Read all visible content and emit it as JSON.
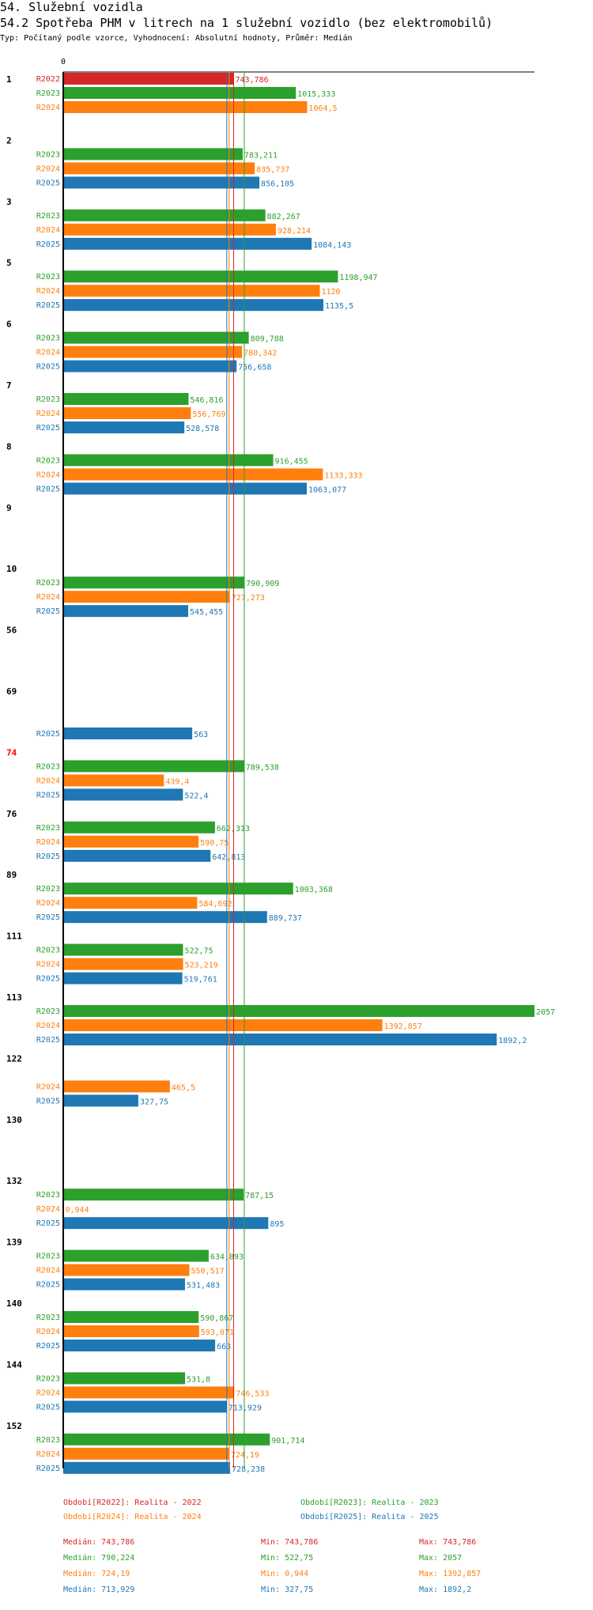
{
  "header": {
    "title": "54. Služební vozidla",
    "subtitle": "54.2 Spotřeba PHM v litrech na 1 služební vozidlo (bez elektromobilů)",
    "note": "Typ: Počítaný podle vzorce, Vyhodnocení: Absolutní hodnoty, Průměr: Medián"
  },
  "colors": {
    "R2022": "#d62728",
    "R2023": "#2ca02c",
    "R2024": "#ff7f0e",
    "R2025": "#1f77b4",
    "highlight_group": "#ff0000"
  },
  "chart_data": {
    "type": "bar",
    "orientation": "horizontal",
    "title": "54.2 Spotřeba PHM v litrech na 1 služební vozidlo (bez elektromobilů)",
    "x_axis_zero_label": "0",
    "xlim": [
      0,
      2057
    ],
    "highlight_group": "74",
    "groups": [
      {
        "id": "1",
        "bars": [
          {
            "series": "R2022",
            "label": "743,786",
            "value": 743.786
          },
          {
            "series": "R2023",
            "label": "1015,333",
            "value": 1015.333
          },
          {
            "series": "R2024",
            "label": "1064,5",
            "value": 1064.5
          }
        ]
      },
      {
        "id": "2",
        "bars": [
          {
            "series": "R2023",
            "label": "783,211",
            "value": 783.211
          },
          {
            "series": "R2024",
            "label": "835,737",
            "value": 835.737
          },
          {
            "series": "R2025",
            "label": "856,105",
            "value": 856.105
          }
        ]
      },
      {
        "id": "3",
        "bars": [
          {
            "series": "R2023",
            "label": "882,267",
            "value": 882.267
          },
          {
            "series": "R2024",
            "label": "928,214",
            "value": 928.214
          },
          {
            "series": "R2025",
            "label": "1084,143",
            "value": 1084.143
          }
        ]
      },
      {
        "id": "5",
        "bars": [
          {
            "series": "R2023",
            "label": "1198,947",
            "value": 1198.947
          },
          {
            "series": "R2024",
            "label": "1120",
            "value": 1120
          },
          {
            "series": "R2025",
            "label": "1135,5",
            "value": 1135.5
          }
        ]
      },
      {
        "id": "6",
        "bars": [
          {
            "series": "R2023",
            "label": "809,788",
            "value": 809.788
          },
          {
            "series": "R2024",
            "label": "780,342",
            "value": 780.342
          },
          {
            "series": "R2025",
            "label": "756,658",
            "value": 756.658
          }
        ]
      },
      {
        "id": "7",
        "bars": [
          {
            "series": "R2023",
            "label": "546,816",
            "value": 546.816
          },
          {
            "series": "R2024",
            "label": "556,769",
            "value": 556.769
          },
          {
            "series": "R2025",
            "label": "528,578",
            "value": 528.578
          }
        ]
      },
      {
        "id": "8",
        "bars": [
          {
            "series": "R2023",
            "label": "916,455",
            "value": 916.455
          },
          {
            "series": "R2024",
            "label": "1133,333",
            "value": 1133.333
          },
          {
            "series": "R2025",
            "label": "1063,077",
            "value": 1063.077
          }
        ]
      },
      {
        "id": "9",
        "bars": []
      },
      {
        "id": "10",
        "bars": [
          {
            "series": "R2023",
            "label": "790,909",
            "value": 790.909
          },
          {
            "series": "R2024",
            "label": "727,273",
            "value": 727.273
          },
          {
            "series": "R2025",
            "label": "545,455",
            "value": 545.455
          }
        ]
      },
      {
        "id": "56",
        "bars": []
      },
      {
        "id": "69",
        "bars": [
          {
            "series": "R2025",
            "label": "563",
            "value": 563
          }
        ]
      },
      {
        "id": "74",
        "bars": [
          {
            "series": "R2023",
            "label": "789,538",
            "value": 789.538
          },
          {
            "series": "R2024",
            "label": "439,4",
            "value": 439.4
          },
          {
            "series": "R2025",
            "label": "522,4",
            "value": 522.4
          }
        ]
      },
      {
        "id": "76",
        "bars": [
          {
            "series": "R2023",
            "label": "662,313",
            "value": 662.313
          },
          {
            "series": "R2024",
            "label": "590,75",
            "value": 590.75
          },
          {
            "series": "R2025",
            "label": "642,813",
            "value": 642.813
          }
        ]
      },
      {
        "id": "89",
        "bars": [
          {
            "series": "R2023",
            "label": "1003,368",
            "value": 1003.368
          },
          {
            "series": "R2024",
            "label": "584,692",
            "value": 584.692
          },
          {
            "series": "R2025",
            "label": "889,737",
            "value": 889.737
          }
        ]
      },
      {
        "id": "111",
        "bars": [
          {
            "series": "R2023",
            "label": "522,75",
            "value": 522.75
          },
          {
            "series": "R2024",
            "label": "523,219",
            "value": 523.219
          },
          {
            "series": "R2025",
            "label": "519,761",
            "value": 519.761
          }
        ]
      },
      {
        "id": "113",
        "bars": [
          {
            "series": "R2023",
            "label": "2057",
            "value": 2057
          },
          {
            "series": "R2024",
            "label": "1392,857",
            "value": 1392.857
          },
          {
            "series": "R2025",
            "label": "1892,2",
            "value": 1892.2
          }
        ]
      },
      {
        "id": "122",
        "bars": [
          {
            "series": "R2024",
            "label": "465,5",
            "value": 465.5
          },
          {
            "series": "R2025",
            "label": "327,75",
            "value": 327.75
          }
        ]
      },
      {
        "id": "130",
        "bars": []
      },
      {
        "id": "132",
        "bars": [
          {
            "series": "R2023",
            "label": "787,15",
            "value": 787.15
          },
          {
            "series": "R2024",
            "label": "0,944",
            "value": 0.944
          },
          {
            "series": "R2025",
            "label": "895",
            "value": 895
          }
        ]
      },
      {
        "id": "139",
        "bars": [
          {
            "series": "R2023",
            "label": "634,893",
            "value": 634.893
          },
          {
            "series": "R2024",
            "label": "550,517",
            "value": 550.517
          },
          {
            "series": "R2025",
            "label": "531,483",
            "value": 531.483
          }
        ]
      },
      {
        "id": "140",
        "bars": [
          {
            "series": "R2023",
            "label": "590,867",
            "value": 590.867
          },
          {
            "series": "R2024",
            "label": "593,071",
            "value": 593.071
          },
          {
            "series": "R2025",
            "label": "663",
            "value": 663
          }
        ]
      },
      {
        "id": "144",
        "bars": [
          {
            "series": "R2023",
            "label": "531,8",
            "value": 531.8
          },
          {
            "series": "R2024",
            "label": "746,533",
            "value": 746.533
          },
          {
            "series": "R2025",
            "label": "713,929",
            "value": 713.929
          }
        ]
      },
      {
        "id": "152",
        "bars": [
          {
            "series": "R2023",
            "label": "901,714",
            "value": 901.714
          },
          {
            "series": "R2024",
            "label": "724,19",
            "value": 724.19
          },
          {
            "series": "R2025",
            "label": "728,238",
            "value": 728.238
          }
        ]
      }
    ],
    "median_lines": [
      {
        "series": "R2022",
        "value": 743.786
      },
      {
        "series": "R2023",
        "value": 790.224
      },
      {
        "series": "R2024",
        "value": 724.19
      },
      {
        "series": "R2025",
        "value": 713.929
      }
    ]
  },
  "legend": {
    "periods": [
      {
        "series": "R2022",
        "text": "Období[R2022]: Realita - 2022"
      },
      {
        "series": "R2023",
        "text": "Období[R2023]: Realita - 2023"
      },
      {
        "series": "R2024",
        "text": "Období[R2024]: Realita - 2024"
      },
      {
        "series": "R2025",
        "text": "Období[R2025]: Realita - 2025"
      }
    ],
    "stats": [
      {
        "series": "R2022",
        "median": "Medián: 743,786",
        "min": "Min: 743,786",
        "max": "Max: 743,786"
      },
      {
        "series": "R2023",
        "median": "Medián: 790,224",
        "min": "Min: 522,75",
        "max": "Max: 2057"
      },
      {
        "series": "R2024",
        "median": "Medián: 724,19",
        "min": "Min: 0,944",
        "max": "Max: 1392,857"
      },
      {
        "series": "R2025",
        "median": "Medián: 713,929",
        "min": "Min: 327,75",
        "max": "Max: 1892,2"
      }
    ]
  }
}
